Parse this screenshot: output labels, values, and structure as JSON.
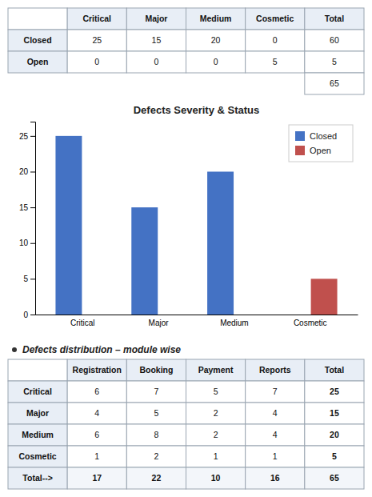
{
  "chart_data": [
    {
      "type": "table",
      "columns": [
        "Critical",
        "Major",
        "Medium",
        "Cosmetic",
        "Total"
      ],
      "row_labels": [
        "Closed",
        "Open",
        null
      ],
      "rows": [
        [
          25,
          15,
          20,
          0,
          60
        ],
        [
          0,
          0,
          0,
          5,
          5
        ],
        [
          null,
          null,
          null,
          null,
          65
        ]
      ]
    },
    {
      "type": "bar",
      "title": "Defects Severity & Status",
      "categories": [
        "Critical",
        "Major",
        "Medium",
        "Cosmetic"
      ],
      "series": [
        {
          "name": "Closed",
          "color": "#4472C4",
          "values": [
            25,
            15,
            20,
            0
          ]
        },
        {
          "name": "Open",
          "color": "#C0504D",
          "values": [
            0,
            0,
            0,
            5
          ]
        }
      ],
      "ylim": [
        0,
        27
      ],
      "yticks": [
        0,
        5,
        10,
        15,
        20,
        25
      ],
      "grid": false,
      "legend": "upper right"
    },
    {
      "type": "table",
      "title": "Defects distribution – module wise",
      "columns": [
        "Registration",
        "Booking",
        "Payment",
        "Reports",
        "Total"
      ],
      "row_labels": [
        "Critical",
        "Major",
        "Medium",
        "Cosmetic",
        "Total-->"
      ],
      "rows": [
        [
          6,
          7,
          5,
          7,
          25
        ],
        [
          4,
          5,
          2,
          4,
          15
        ],
        [
          6,
          8,
          2,
          4,
          20
        ],
        [
          1,
          2,
          1,
          1,
          5
        ],
        [
          17,
          22,
          10,
          16,
          65
        ]
      ]
    }
  ]
}
